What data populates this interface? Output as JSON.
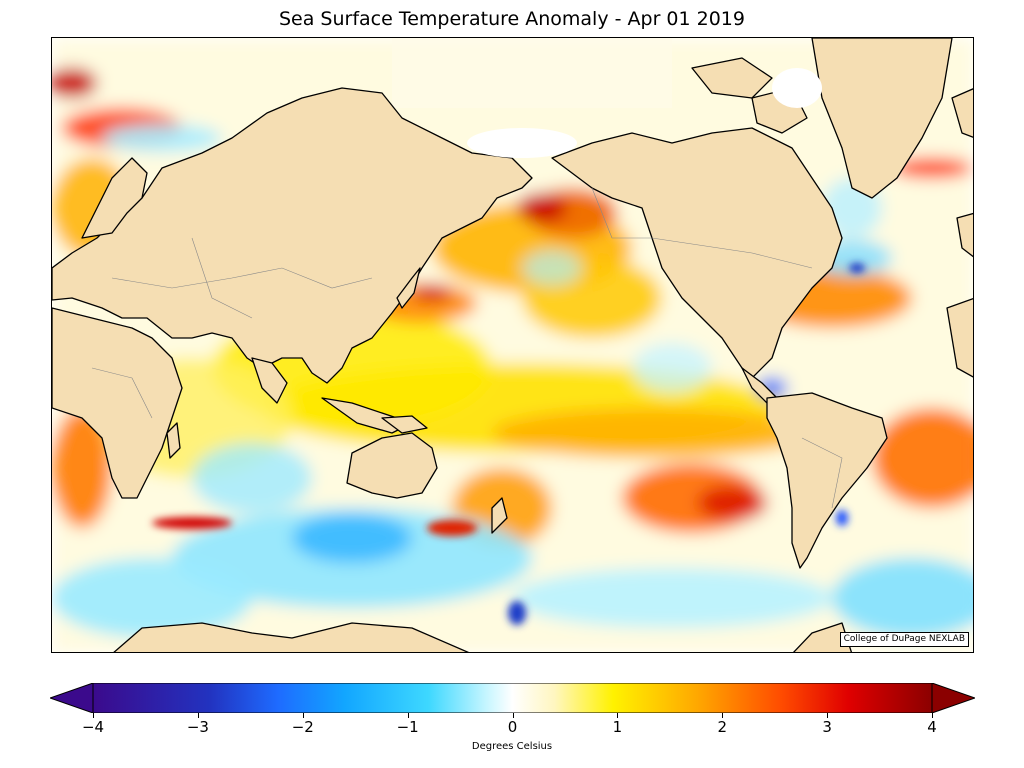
{
  "title": "Sea Surface Temperature Anomaly - Apr 01 2019",
  "credit": "College of DuPage NEXLAB",
  "colorbar": {
    "label": "Degrees Celsius",
    "ticks": [
      "−4",
      "−3",
      "−2",
      "−1",
      "0",
      "1",
      "2",
      "3",
      "4"
    ],
    "min": -4,
    "max": 4,
    "extend": "both",
    "colors": {
      "cold_extreme": "#3b0a8c",
      "cold_blue": "#1e4fff",
      "cool_cyan": "#2fd5ff",
      "neutral": "#ffffff",
      "warm_yellow": "#fff200",
      "warm_orange": "#ff8a00",
      "hot_red": "#e60000",
      "hot_extreme": "#8b0000"
    }
  },
  "map": {
    "land_color": "#f5deb3",
    "coast_color": "#000000",
    "border_color": "#888888"
  }
}
